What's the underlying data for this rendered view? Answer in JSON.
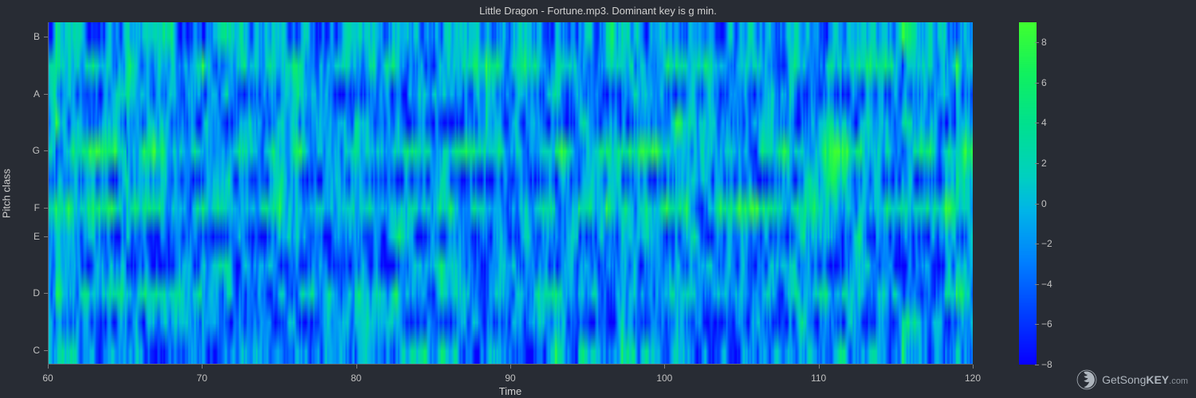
{
  "title": "Little Dragon - Fortune.mp3. Dominant key is g min.",
  "background_color": "#282c34",
  "text_color": "#d0d0d0",
  "tick_color": "#c0c0c0",
  "axis_line_color": "#606570",
  "chart": {
    "type": "heatmap",
    "x_label": "Time",
    "y_label": "Pitch class",
    "xlim": [
      60,
      120
    ],
    "x_ticks": [
      60,
      70,
      80,
      90,
      100,
      110,
      120
    ],
    "y_ticks": [
      "C",
      "D",
      "E",
      "F",
      "G",
      "A",
      "B"
    ],
    "y_tick_positions": [
      0,
      2,
      4,
      5,
      7,
      9,
      11
    ],
    "n_rows": 12,
    "n_cols": 600,
    "pitch_colormap_stops": [
      {
        "t": 0.0,
        "color": "#0800ff"
      },
      {
        "t": 0.15,
        "color": "#0040ff"
      },
      {
        "t": 0.3,
        "color": "#0080ff"
      },
      {
        "t": 0.45,
        "color": "#00b5e8"
      },
      {
        "t": 0.55,
        "color": "#00d0c0"
      },
      {
        "t": 0.7,
        "color": "#00e090"
      },
      {
        "t": 0.85,
        "color": "#10f060"
      },
      {
        "t": 1.0,
        "color": "#40ff30"
      }
    ],
    "value_range": [
      -8,
      9
    ],
    "colorbar_ticks": [
      -8,
      -6,
      -4,
      -2,
      0,
      2,
      4,
      6,
      8
    ],
    "noise_seed": 7,
    "row_bias": [
      0.35,
      0.3,
      0.45,
      0.3,
      0.3,
      0.55,
      0.3,
      0.58,
      0.32,
      0.3,
      0.5,
      0.4
    ]
  },
  "watermark": {
    "brand_prefix": "GetSong",
    "brand_bold": "KEY",
    "brand_suffix": ".com",
    "logo_color": "#aeb5bd"
  }
}
